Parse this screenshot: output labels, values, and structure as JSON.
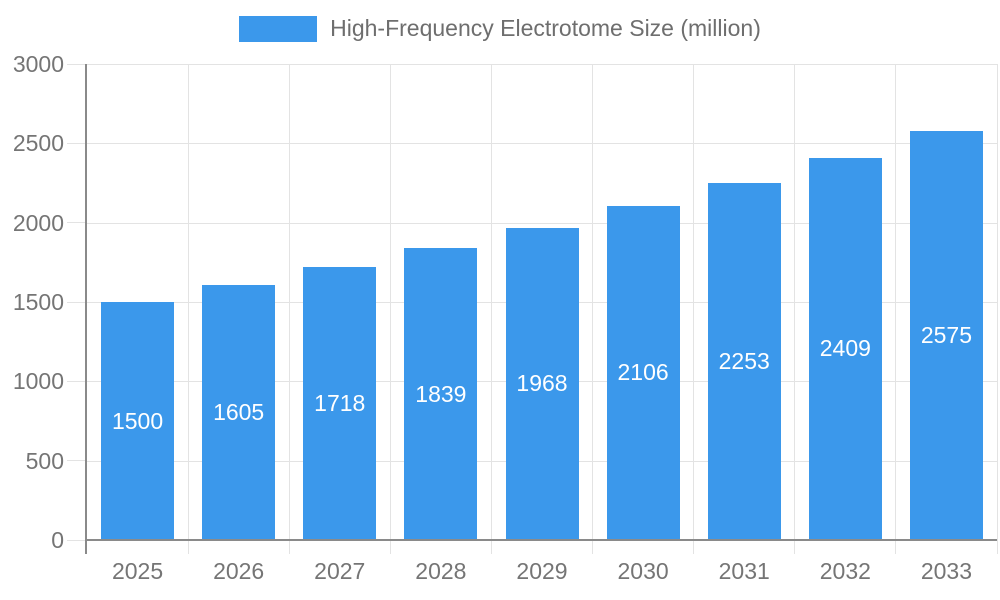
{
  "legend": {
    "label": "High-Frequency Electrotome Size (million)"
  },
  "colors": {
    "bar": "#3b98eb",
    "bar_label": "#ffffff",
    "grid": "#e3e3e3",
    "axis": "#8a8a8a",
    "tick_label": "#757575",
    "legend_text": "#6e6e6e",
    "background": "#ffffff"
  },
  "chart_data": {
    "type": "bar",
    "title": "High-Frequency Electrotome Size (million)",
    "categories": [
      "2025",
      "2026",
      "2027",
      "2028",
      "2029",
      "2030",
      "2031",
      "2032",
      "2033"
    ],
    "values": [
      1500,
      1605,
      1718,
      1839,
      1968,
      2106,
      2253,
      2409,
      2575
    ],
    "series": [
      {
        "name": "High-Frequency Electrotome Size (million)",
        "values": [
          1500,
          1605,
          1718,
          1839,
          1968,
          2106,
          2253,
          2409,
          2575
        ]
      }
    ],
    "xlabel": "",
    "ylabel": "",
    "ylim": [
      0,
      3000
    ],
    "yticks": [
      0,
      500,
      1000,
      1500,
      2000,
      2500,
      3000
    ],
    "grid": true,
    "bar_labels_inside": true,
    "legend_position": "top-center"
  }
}
